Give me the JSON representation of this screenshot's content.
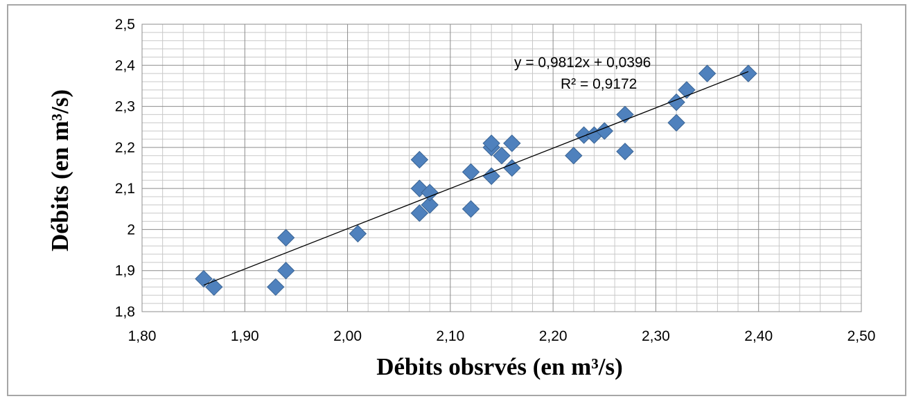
{
  "chart_data": {
    "type": "scatter",
    "xlabel": "Débits obsrvés (en m³/s)",
    "ylabel": "Débits (en m³/s)",
    "xlim": [
      1.8,
      2.5
    ],
    "ylim": [
      1.8,
      2.5
    ],
    "x_ticks": [
      "1,80",
      "1,90",
      "2,00",
      "2,10",
      "2,20",
      "2,30",
      "2,40",
      "2,50"
    ],
    "y_ticks": [
      "1,8",
      "1,9",
      "2",
      "2,1",
      "2,2",
      "2,3",
      "2,4",
      "2,5"
    ],
    "grid": true,
    "marker": "diamond",
    "marker_color": "#4f81bd",
    "trendline": {
      "type": "linear",
      "slope": 0.9812,
      "intercept": 0.0396,
      "equation_label": "y = 0,9812x + 0,0396",
      "r2_label": "R² = 0,9172"
    },
    "points": [
      {
        "x": 1.86,
        "y": 1.88
      },
      {
        "x": 1.87,
        "y": 1.86
      },
      {
        "x": 1.93,
        "y": 1.86
      },
      {
        "x": 1.94,
        "y": 1.9
      },
      {
        "x": 1.94,
        "y": 1.98
      },
      {
        "x": 2.01,
        "y": 1.99
      },
      {
        "x": 2.07,
        "y": 2.04
      },
      {
        "x": 2.07,
        "y": 2.1
      },
      {
        "x": 2.07,
        "y": 2.17
      },
      {
        "x": 2.08,
        "y": 2.06
      },
      {
        "x": 2.08,
        "y": 2.09
      },
      {
        "x": 2.12,
        "y": 2.05
      },
      {
        "x": 2.12,
        "y": 2.14
      },
      {
        "x": 2.14,
        "y": 2.13
      },
      {
        "x": 2.14,
        "y": 2.2
      },
      {
        "x": 2.14,
        "y": 2.21
      },
      {
        "x": 2.15,
        "y": 2.18
      },
      {
        "x": 2.16,
        "y": 2.15
      },
      {
        "x": 2.16,
        "y": 2.21
      },
      {
        "x": 2.22,
        "y": 2.18
      },
      {
        "x": 2.23,
        "y": 2.23
      },
      {
        "x": 2.24,
        "y": 2.23
      },
      {
        "x": 2.25,
        "y": 2.24
      },
      {
        "x": 2.27,
        "y": 2.19
      },
      {
        "x": 2.27,
        "y": 2.28
      },
      {
        "x": 2.32,
        "y": 2.26
      },
      {
        "x": 2.32,
        "y": 2.31
      },
      {
        "x": 2.33,
        "y": 2.34
      },
      {
        "x": 2.35,
        "y": 2.38
      },
      {
        "x": 2.39,
        "y": 2.38
      }
    ]
  }
}
